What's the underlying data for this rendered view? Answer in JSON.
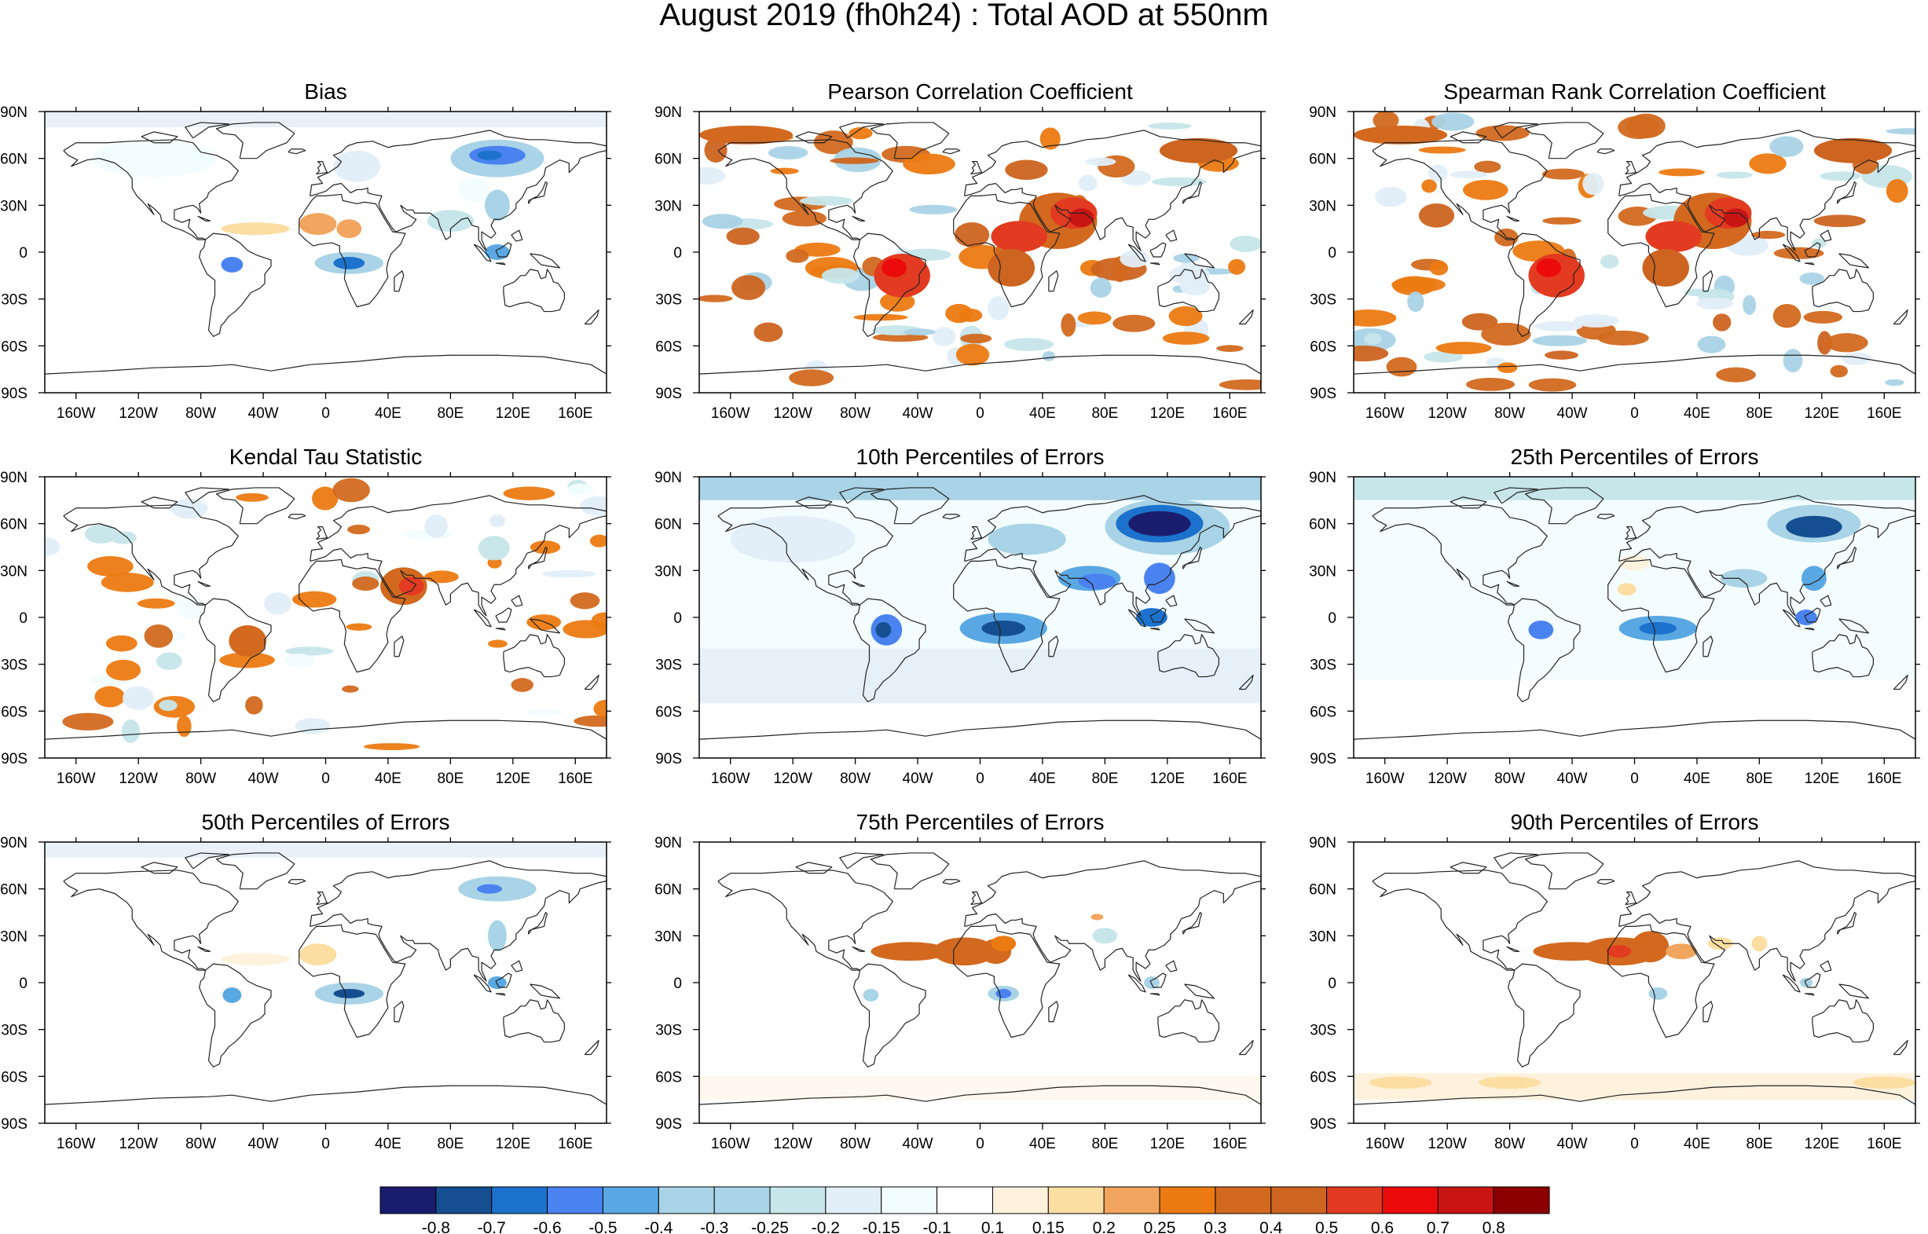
{
  "title": "August 2019 (fh0h24) : Total AOD at 550nm",
  "lon_labels": [
    "160W",
    "120W",
    "80W",
    "40W",
    "0",
    "40E",
    "80E",
    "120E",
    "160E"
  ],
  "lat_labels": [
    "90N",
    "60N",
    "30N",
    "0",
    "30S",
    "60S",
    "90S"
  ],
  "panels": [
    {
      "title": "Bias",
      "type": "bias"
    },
    {
      "title": "Pearson Correlation Coefficient",
      "type": "corr"
    },
    {
      "title": "Spearman Rank Correlation Coefficient",
      "type": "corr2"
    },
    {
      "title": "Kendal Tau Statistic",
      "type": "kendal"
    },
    {
      "title": "10th Percentiles of Errors",
      "type": "p10"
    },
    {
      "title": "25th Percentiles of Errors",
      "type": "p25"
    },
    {
      "title": "50th Percentiles of Errors",
      "type": "p50"
    },
    {
      "title": "75th Percentiles of Errors",
      "type": "p75"
    },
    {
      "title": "90th Percentiles of Errors",
      "type": "p90"
    }
  ],
  "colorbar": {
    "labels": [
      "-0.8",
      "-0.7",
      "-0.6",
      "-0.5",
      "-0.4",
      "-0.3",
      "-0.25",
      "-0.2",
      "-0.15",
      "-0.1",
      "0.1",
      "0.15",
      "0.2",
      "0.25",
      "0.3",
      "0.4",
      "0.5",
      "0.6",
      "0.7",
      "0.8"
    ],
    "colors": [
      "#1a1d6e",
      "#164f91",
      "#1c72cc",
      "#4a82f0",
      "#5aa8e3",
      "#a9d3e6",
      "#a9d3e6",
      "#c6e6ea",
      "#e2eef8",
      "#f2fdff",
      "#ffffff",
      "#fef2dd",
      "#fcdea3",
      "#f2a55e",
      "#ec7a12",
      "#d2691f",
      "#cd6420",
      "#e23b21",
      "#ec0b0b",
      "#c91414",
      "#8c0000"
    ]
  }
}
